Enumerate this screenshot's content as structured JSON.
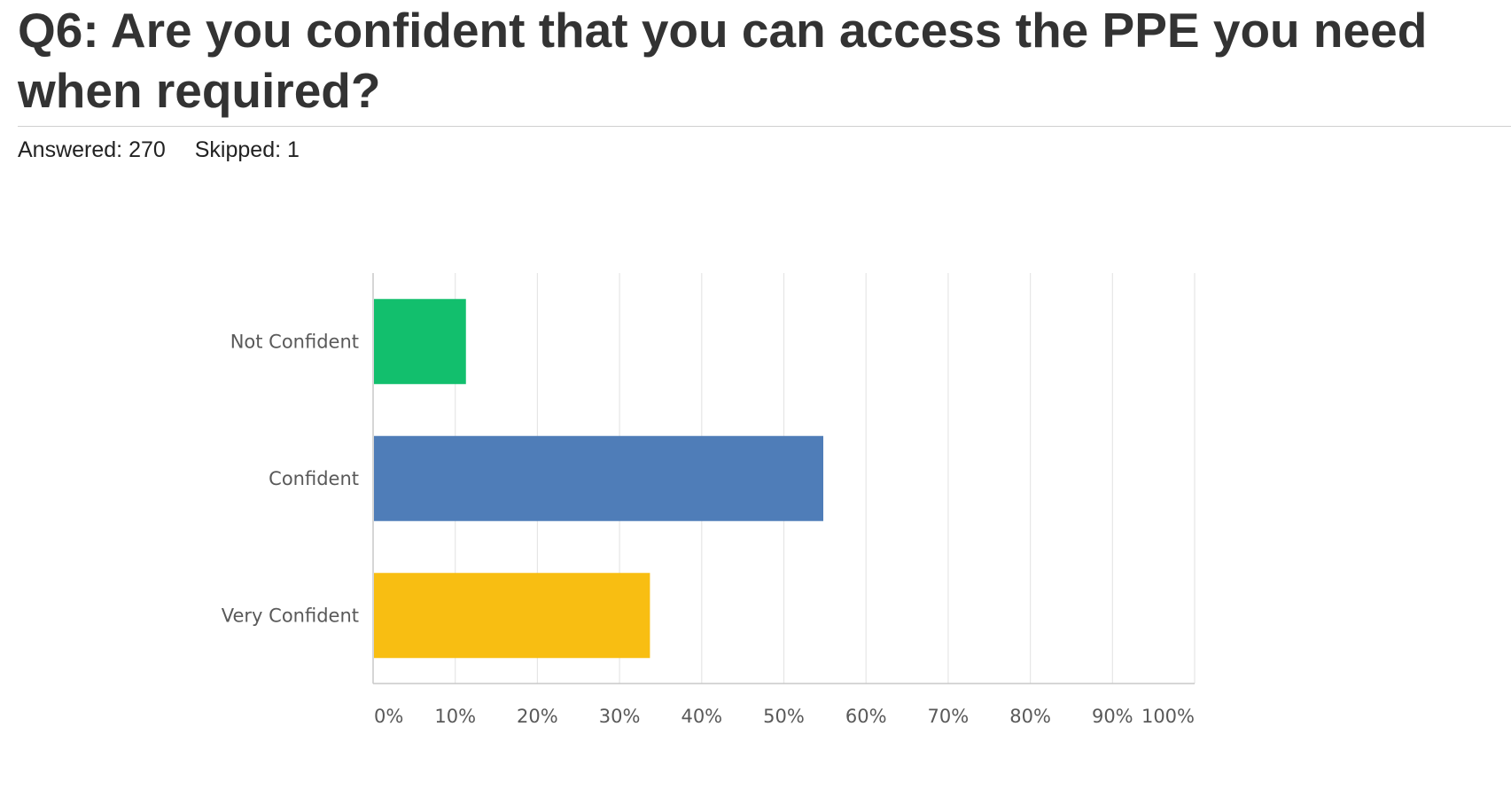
{
  "question": {
    "title": "Q6: Are you confident that you can access the PPE you need when required?"
  },
  "stats": {
    "answered_label": "Answered:",
    "answered_value": "270",
    "skipped_label": "Skipped:",
    "skipped_value": "1"
  },
  "chart_data": {
    "type": "bar",
    "orientation": "horizontal",
    "categories": [
      "Not Confident",
      "Confident",
      "Very Confident"
    ],
    "values": [
      11.3,
      54.8,
      33.7
    ],
    "colors": [
      "#12bf6d",
      "#4f7db8",
      "#f8be12"
    ],
    "xlim": [
      0,
      100
    ],
    "x_ticks": [
      "0%",
      "10%",
      "20%",
      "30%",
      "40%",
      "50%",
      "60%",
      "70%",
      "80%",
      "90%",
      "100%"
    ],
    "grid": true,
    "legend": "none",
    "grid_color": "#e6e6e6",
    "axis_color": "#c8c8c8",
    "tick_label_color": "#595959"
  }
}
